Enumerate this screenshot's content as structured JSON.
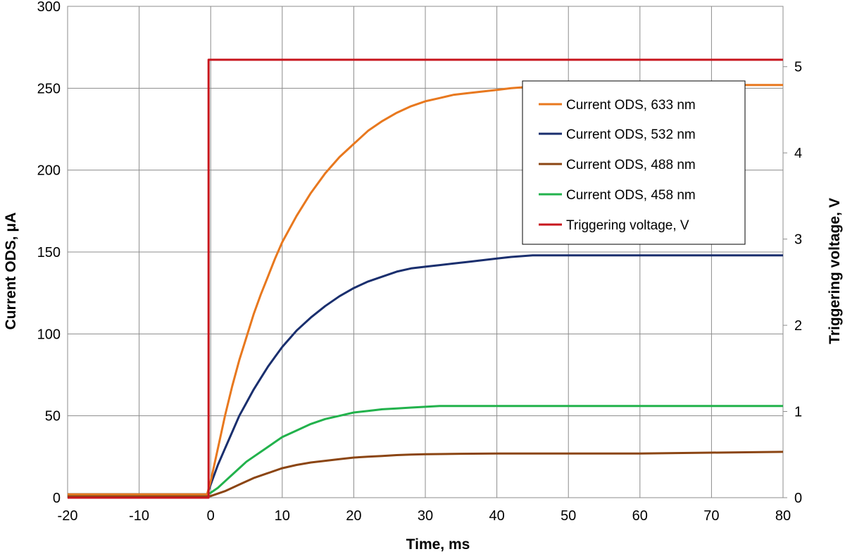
{
  "chart_data": {
    "type": "line",
    "title": "",
    "xlabel": "Time, ms",
    "ylabel": "Current ODS, μA",
    "y2label": "Triggering voltage, V",
    "xlim": [
      -20,
      80
    ],
    "ylim": [
      0,
      300
    ],
    "y2lim": [
      0,
      5.7
    ],
    "x_ticks": [
      -20,
      -10,
      0,
      10,
      20,
      30,
      40,
      50,
      60,
      70,
      80
    ],
    "y_ticks": [
      0,
      50,
      100,
      150,
      200,
      250,
      300
    ],
    "y2_ticks": [
      0,
      1,
      2,
      3,
      4,
      5
    ],
    "grid": true,
    "legend_position": "upper-right",
    "series": [
      {
        "name": "Current ODS, 633 nm",
        "color": "#E8781E",
        "axis": "left",
        "x": [
          -20,
          -10,
          -0.5,
          0,
          1,
          2,
          3,
          4,
          5,
          6,
          7,
          8,
          9,
          10,
          12,
          14,
          16,
          18,
          20,
          22,
          24,
          26,
          28,
          30,
          32,
          34,
          36,
          38,
          40,
          42,
          45,
          50,
          60,
          70,
          80
        ],
        "y": [
          2,
          2,
          2,
          10,
          30,
          50,
          68,
          84,
          98,
          112,
          124,
          135,
          146,
          156,
          172,
          186,
          198,
          208,
          216,
          224,
          230,
          235,
          239,
          242,
          244,
          246,
          247,
          248,
          249,
          250,
          251,
          252,
          252,
          252,
          252
        ]
      },
      {
        "name": "Current ODS, 532 nm",
        "color": "#1A2F6E",
        "axis": "left",
        "x": [
          -20,
          -10,
          -0.5,
          0,
          1,
          2,
          3,
          4,
          5,
          6,
          7,
          8,
          9,
          10,
          12,
          14,
          16,
          18,
          20,
          22,
          24,
          26,
          28,
          30,
          32,
          34,
          36,
          38,
          40,
          42,
          45,
          50,
          60,
          70,
          80
        ],
        "y": [
          2,
          2,
          2,
          8,
          20,
          30,
          40,
          50,
          58,
          66,
          73,
          80,
          86,
          92,
          102,
          110,
          117,
          123,
          128,
          132,
          135,
          138,
          140,
          141,
          142,
          143,
          144,
          145,
          146,
          147,
          148,
          148,
          148,
          148,
          148
        ]
      },
      {
        "name": "Current ODS, 488 nm",
        "color": "#8B4513",
        "axis": "left",
        "x": [
          -20,
          -10,
          -0.5,
          0,
          2,
          4,
          6,
          8,
          10,
          12,
          14,
          16,
          18,
          20,
          22,
          24,
          26,
          28,
          30,
          35,
          40,
          45,
          50,
          60,
          70,
          80
        ],
        "y": [
          1,
          1,
          1,
          1,
          4,
          8,
          12,
          15,
          18,
          20,
          21.5,
          22.5,
          23.5,
          24.5,
          25,
          25.5,
          26,
          26.3,
          26.5,
          26.8,
          27,
          27,
          27,
          27,
          27.5,
          28
        ]
      },
      {
        "name": "Current ODS, 458 nm",
        "color": "#22B24C",
        "axis": "left",
        "x": [
          -20,
          -10,
          -0.5,
          0,
          1,
          2,
          3,
          4,
          5,
          6,
          7,
          8,
          9,
          10,
          12,
          14,
          16,
          18,
          20,
          22,
          24,
          26,
          28,
          30,
          32,
          35,
          40,
          45,
          50,
          60,
          70,
          80
        ],
        "y": [
          2,
          2,
          2,
          3,
          6,
          10,
          14,
          18,
          22,
          25,
          28,
          31,
          34,
          37,
          41,
          45,
          48,
          50,
          52,
          53,
          54,
          54.5,
          55,
          55.5,
          56,
          56,
          56,
          56,
          56,
          56,
          56,
          56
        ]
      },
      {
        "name": "Triggering voltage, V",
        "color": "#C8161D",
        "axis": "right",
        "x": [
          -20,
          -0.3,
          -0.3,
          80
        ],
        "y": [
          0,
          0,
          5.08,
          5.08
        ]
      }
    ]
  }
}
